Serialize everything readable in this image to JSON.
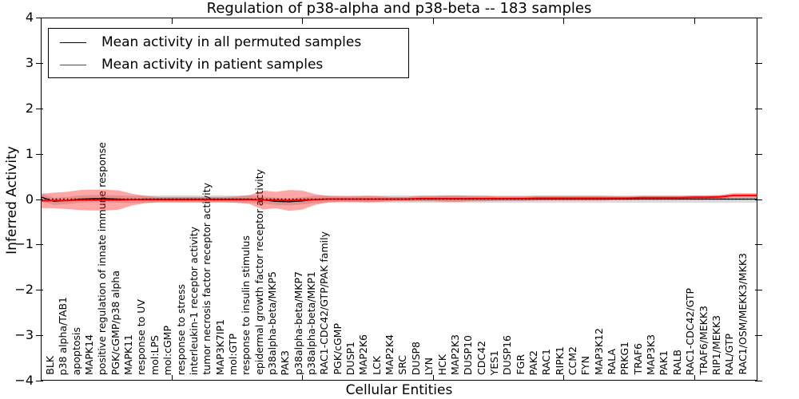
{
  "title": "Regulation of p38-alpha and p38-beta -- 183 samples",
  "legend": {
    "entries": [
      {
        "label": "Mean activity in all permuted samples",
        "color": "#000000"
      },
      {
        "label": "Mean activity in patient samples",
        "color": "#ff0000"
      }
    ]
  },
  "axes": {
    "ylabel": "Inferred Activity",
    "xlabel": "Cellular Entities",
    "ylim": [
      -4,
      4
    ],
    "yticks": [
      4,
      3,
      2,
      1,
      0,
      -1,
      -2,
      -3,
      -4
    ],
    "xticks": [
      10,
      20,
      30,
      40,
      50
    ],
    "grid": false
  },
  "colors": {
    "permuted_line": "#000000",
    "patient_line": "#ff0000",
    "patient_band": "rgba(255,0,0,0.35)",
    "permuted_band": "rgba(0,0,0,0.14)",
    "zero_line": "#000000"
  },
  "chart_data": {
    "type": "line",
    "title": "Regulation of p38-alpha and p38-beta -- 183 samples",
    "xlabel": "Cellular Entities",
    "ylabel": "Inferred Activity",
    "ylim": [
      -4,
      4
    ],
    "legend_position": "upper left",
    "zero_line": {
      "y": 0,
      "style": "dotted"
    },
    "entities": [
      "BLK",
      "p38 alpha/TAB1",
      "apoptosis",
      "MAPK14",
      "positive regulation of innate immune response",
      "PGK/cGMP/p38 alpha",
      "MAPK11",
      "response to UV",
      "mol:LPS",
      "mol:cGMP",
      "response to stress",
      "interleukin-1 receptor activity",
      "tumor necrosis factor receptor activity",
      "MAP3K7IP1",
      "mol:GTP",
      "response to insulin stimulus",
      "epidermal growth factor receptor activity",
      "p38alpha-beta/MKP5",
      "PAK3",
      "p38alpha-beta/MKP7",
      "p38alpha-beta/MKP1",
      "RAC1-CDC42/GTP/PAK family",
      "PGK/cGMP",
      "DUSP1",
      "MAP2K6",
      "LCK",
      "MAP2K4",
      "SRC",
      "DUSP8",
      "LYN",
      "HCK",
      "MAP2K3",
      "DUSP10",
      "CDC42",
      "YES1",
      "DUSP16",
      "FGR",
      "PAK2",
      "RAC1",
      "RIPK1",
      "CCM2",
      "FYN",
      "MAP3K12",
      "RALA",
      "PRKG1",
      "TRAF6",
      "MAP3K3",
      "PAK1",
      "RALB",
      "RAC1-CDC42/GTP",
      "TRAF6/MEKK3",
      "RIP1/MEKK3",
      "RAL/GTP",
      "RAC1/OSM/MEKK3/MKK3"
    ],
    "series": [
      {
        "name": "Mean activity in all permuted samples",
        "color": "#000000",
        "style": "solid",
        "values": [
          0.05,
          -0.05,
          -0.03,
          0.0,
          0.01,
          0.01,
          0.0,
          -0.01,
          0.0,
          0.0,
          0.0,
          0.0,
          0.0,
          0.0,
          0.0,
          0.0,
          0.0,
          -0.02,
          -0.05,
          -0.06,
          -0.04,
          -0.01,
          0.0,
          0.0,
          0.0,
          0.0,
          0.0,
          0.0,
          0.0,
          0.0,
          0.0,
          0.0,
          0.0,
          0.0,
          0.0,
          0.0,
          0.0,
          0.0,
          0.0,
          0.0,
          0.0,
          0.0,
          0.0,
          0.0,
          0.0,
          0.0,
          0.0,
          0.0,
          0.0,
          0.0,
          0.0,
          0.0,
          0.0,
          0.0
        ]
      },
      {
        "name": "Mean activity in patient samples",
        "color": "#ff0000",
        "style": "solid",
        "values": [
          -0.04,
          -0.03,
          -0.03,
          -0.02,
          -0.02,
          -0.02,
          -0.02,
          -0.01,
          -0.01,
          -0.01,
          -0.01,
          -0.01,
          -0.01,
          -0.01,
          -0.01,
          -0.01,
          -0.01,
          -0.02,
          -0.02,
          -0.03,
          -0.02,
          -0.01,
          0.0,
          0.0,
          0.0,
          0.0,
          0.0,
          0.0,
          0.0,
          0.01,
          0.01,
          0.01,
          0.01,
          0.01,
          0.01,
          0.01,
          0.01,
          0.01,
          0.02,
          0.02,
          0.02,
          0.02,
          0.02,
          0.02,
          0.02,
          0.02,
          0.03,
          0.03,
          0.03,
          0.03,
          0.04,
          0.04,
          0.05,
          0.08
        ]
      }
    ],
    "bands": [
      {
        "name": "std of permuted samples",
        "around_series": 0,
        "color": "rgba(0,0,0,0.14)",
        "half_width_constant": 0.08
      },
      {
        "name": "std of patient samples",
        "around_series": 1,
        "color": "rgba(255,0,0,0.35)",
        "half_widths": [
          0.16,
          0.17,
          0.19,
          0.22,
          0.23,
          0.23,
          0.21,
          0.13,
          0.08,
          0.06,
          0.06,
          0.06,
          0.06,
          0.06,
          0.06,
          0.07,
          0.1,
          0.21,
          0.18,
          0.23,
          0.21,
          0.12,
          0.07,
          0.06,
          0.06,
          0.07,
          0.06,
          0.05,
          0.05,
          0.06,
          0.06,
          0.07,
          0.07,
          0.06,
          0.06,
          0.05,
          0.05,
          0.05,
          0.05,
          0.05,
          0.05,
          0.05,
          0.05,
          0.05,
          0.04,
          0.04,
          0.04,
          0.04,
          0.04,
          0.04,
          0.04,
          0.04,
          0.04,
          0.05
        ]
      }
    ]
  }
}
